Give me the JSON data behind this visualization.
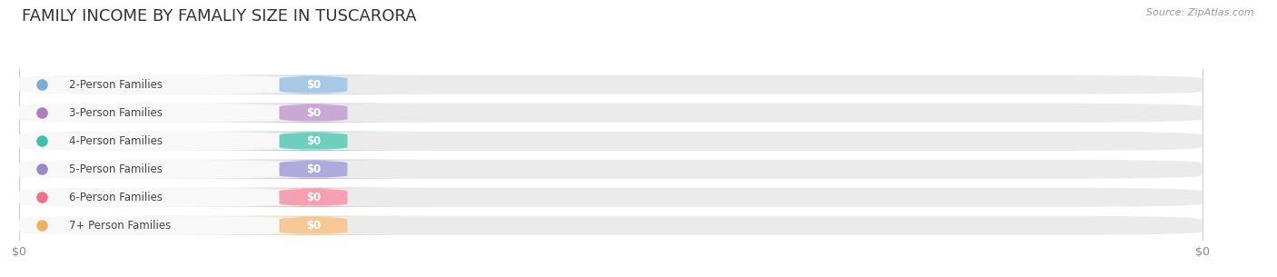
{
  "title": "FAMILY INCOME BY FAMALIY SIZE IN TUSCARORA",
  "source": "Source: ZipAtlas.com",
  "categories": [
    "2-Person Families",
    "3-Person Families",
    "4-Person Families",
    "5-Person Families",
    "6-Person Families",
    "7+ Person Families"
  ],
  "values": [
    0,
    0,
    0,
    0,
    0,
    0
  ],
  "bar_colors": [
    "#a8c8e8",
    "#c9a8d4",
    "#6ecfbf",
    "#b0aadc",
    "#f4a0b0",
    "#f5c895"
  ],
  "dot_colors": [
    "#7aadd4",
    "#b07ec0",
    "#40bfaa",
    "#9988cc",
    "#f07090",
    "#f0b060"
  ],
  "background_color": "#ffffff",
  "bar_bg_color": "#ebebeb",
  "title_fontsize": 13,
  "label_fontsize": 8.5,
  "value_fontsize": 8.5,
  "source_fontsize": 8,
  "fig_bg": "#ffffff",
  "x_tick_positions": [
    0.0,
    0.5,
    1.0
  ],
  "x_tick_labels": [
    "$0",
    "",
    "$0"
  ]
}
